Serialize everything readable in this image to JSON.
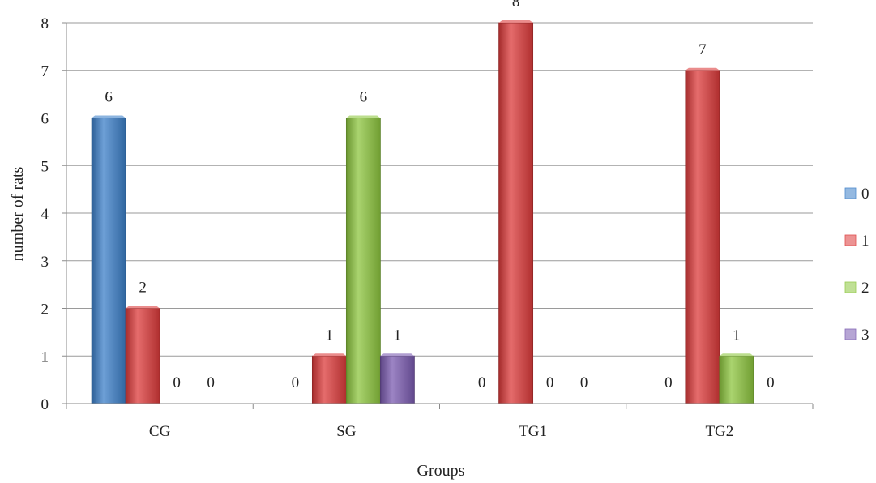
{
  "chart_data": {
    "type": "bar",
    "title": "",
    "xlabel": "Groups",
    "ylabel": "number of rats",
    "ylim": [
      0,
      8
    ],
    "yticks": [
      0,
      1,
      2,
      3,
      4,
      5,
      6,
      7,
      8
    ],
    "categories": [
      "CG",
      "SG",
      "TG1",
      "TG2"
    ],
    "series": [
      {
        "name": "0",
        "color": "#3c7fc8",
        "values": [
          6,
          0,
          0,
          0
        ]
      },
      {
        "name": "1",
        "color": "#dc3b3b",
        "values": [
          2,
          1,
          8,
          7
        ]
      },
      {
        "name": "2",
        "color": "#8dc63f",
        "values": [
          0,
          6,
          0,
          1
        ]
      },
      {
        "name": "3",
        "color": "#7b5bb0",
        "values": [
          0,
          1,
          0,
          0
        ]
      }
    ],
    "grid": true,
    "legend_position": "right"
  }
}
